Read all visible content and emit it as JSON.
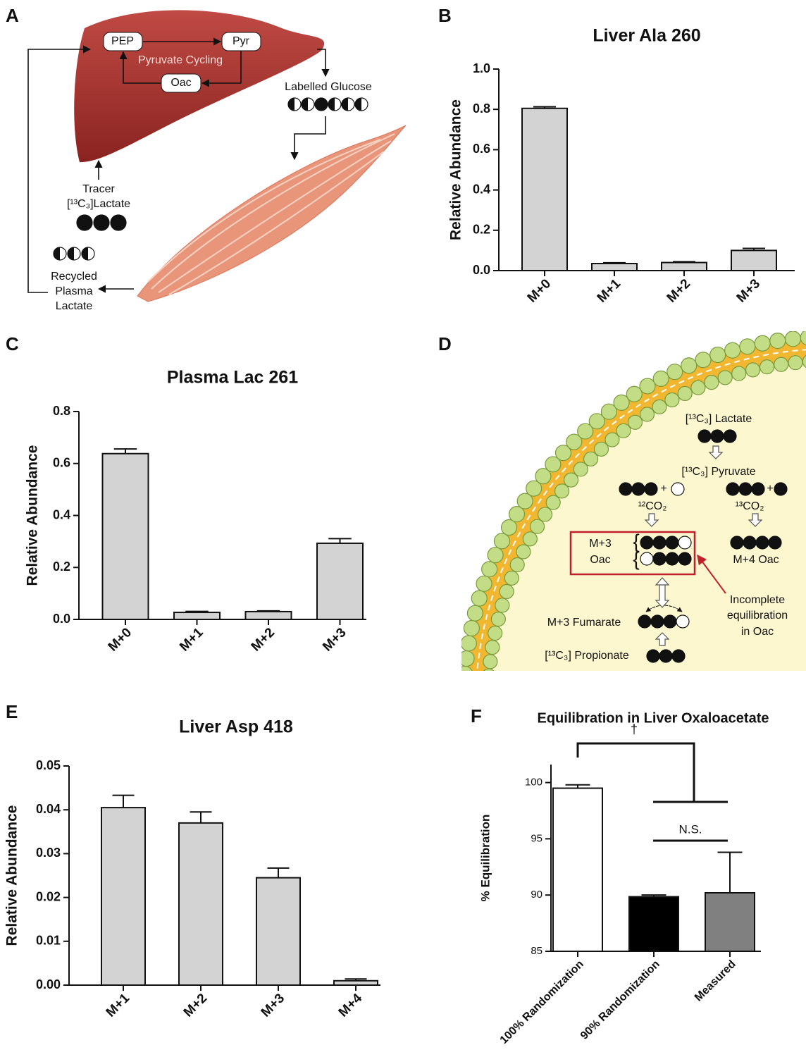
{
  "panel_labels": [
    "A",
    "B",
    "C",
    "D",
    "E",
    "F"
  ],
  "diagram_a": {
    "pep": "PEP",
    "pyr": "Pyr",
    "cycling": "Pyruvate Cycling",
    "oac": "Oac",
    "glucose": "Labelled Glucose",
    "tracer": [
      "Tracer",
      "[¹³C₃]Lactate"
    ],
    "recycled": [
      "Recycled",
      "Plasma",
      "Lactate"
    ]
  },
  "diagram_d": {
    "lactate": "[¹³C₃] Lactate",
    "pyruvate": "[¹³C₃] Pyruvate",
    "plus": "+",
    "co2_12": "¹²CO₂",
    "co2_13": "¹³CO₂",
    "m3": "M+3",
    "oac": "Oac",
    "m4": "M+4 Oac",
    "note": [
      "Incomplete",
      "equilibration",
      "in Oac"
    ],
    "fumarate": "M+3 Fumarate",
    "propionate": "[¹³C₃] Propionate"
  },
  "chart_data": [
    {
      "type": "bar",
      "title": "Liver Ala 260",
      "y_label": "Relative Abundance",
      "categories": [
        "M+0",
        "M+1",
        "M+2",
        "M+3"
      ],
      "values": [
        0.805,
        0.035,
        0.04,
        0.1
      ],
      "errors": [
        0.008,
        0.004,
        0.004,
        0.01
      ],
      "color": "#d3d3d3",
      "ylim": [
        0,
        1.0
      ],
      "yticks": [
        {
          "value": 0,
          "label": "0.0"
        },
        0.2,
        0.4,
        0.6,
        0.8,
        {
          "value": 1.0,
          "label": "1.0"
        }
      ]
    },
    {
      "type": "bar",
      "title": "Plasma Lac 261",
      "y_label": "Relative Abundance",
      "categories": [
        "M+0",
        "M+1",
        "M+2",
        "M+3"
      ],
      "values": [
        0.638,
        0.027,
        0.03,
        0.293
      ],
      "errors": [
        0.018,
        0.004,
        0.003,
        0.018
      ],
      "color": "#d3d3d3",
      "ylim": [
        0,
        0.8
      ],
      "yticks": [
        {
          "value": 0,
          "label": "0.0"
        },
        0.2,
        0.4,
        0.6,
        0.8
      ]
    },
    {
      "type": "bar",
      "title": "Liver Asp 418",
      "y_label": "Relative Abundance",
      "categories": [
        "M+1",
        "M+2",
        "M+3",
        "M+4"
      ],
      "values": [
        0.0405,
        0.037,
        0.0245,
        0.001
      ],
      "errors": [
        0.0028,
        0.0025,
        0.0022,
        0.0004
      ],
      "color": "#d3d3d3",
      "ylim": [
        0,
        0.05
      ],
      "yticks": [
        {
          "value": 0,
          "label": "0.00"
        },
        0.01,
        0.02,
        0.03,
        0.04,
        0.05
      ]
    },
    {
      "type": "bar",
      "title": "Equilibration in Liver Oxaloacetate",
      "y_label": "% Equilibration",
      "categories": [
        "100% Randomization",
        "90% Randomization",
        "Measured"
      ],
      "values": [
        99.5,
        89.85,
        90.2
      ],
      "errors": [
        0.3,
        0.15,
        3.6
      ],
      "colors": [
        "#ffffff",
        "#000000",
        "#808080"
      ],
      "ylim": [
        85,
        101.6
      ],
      "yticks": [
        85,
        90,
        95,
        100
      ],
      "annotations": [
        "†",
        "N.S."
      ]
    }
  ]
}
